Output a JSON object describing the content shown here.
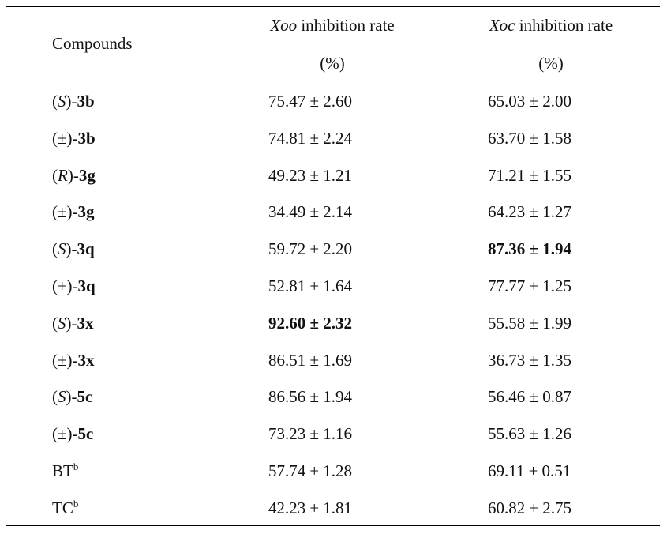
{
  "header": {
    "compounds": "Compounds",
    "xoo_species": "Xoo",
    "xoo_rest": " inhibition rate",
    "xoc_species": "Xoc",
    "xoc_rest": " inhibition rate",
    "unit": "(%)"
  },
  "rows": [
    {
      "stereo_open": "(",
      "stereo": "S",
      "stereo_close": ")-",
      "cmp": "3b",
      "sup": "",
      "xoo": "75.47 ± 2.60",
      "xoc": "65.03 ± 2.00",
      "bold_xoo": false,
      "bold_xoc": false
    },
    {
      "stereo_open": "(",
      "stereo": "±",
      "stereo_close": ")-",
      "cmp": "3b",
      "sup": "",
      "xoo": "74.81 ± 2.24",
      "xoc": "63.70 ± 1.58",
      "bold_xoo": false,
      "bold_xoc": false
    },
    {
      "stereo_open": "(",
      "stereo": "R",
      "stereo_close": ")-",
      "cmp": "3g",
      "sup": "",
      "xoo": "49.23 ± 1.21",
      "xoc": "71.21 ± 1.55",
      "bold_xoo": false,
      "bold_xoc": false
    },
    {
      "stereo_open": "(",
      "stereo": "±",
      "stereo_close": ")-",
      "cmp": "3g",
      "sup": "",
      "xoo": "34.49 ± 2.14",
      "xoc": "64.23 ± 1.27",
      "bold_xoo": false,
      "bold_xoc": false
    },
    {
      "stereo_open": "(",
      "stereo": "S",
      "stereo_close": ")-",
      "cmp": "3q",
      "sup": "",
      "xoo": "59.72 ± 2.20",
      "xoc": "87.36 ± 1.94",
      "bold_xoo": false,
      "bold_xoc": true
    },
    {
      "stereo_open": "(",
      "stereo": "±",
      "stereo_close": ")-",
      "cmp": "3q",
      "sup": "",
      "xoo": "52.81 ± 1.64",
      "xoc": "77.77 ± 1.25",
      "bold_xoo": false,
      "bold_xoc": false
    },
    {
      "stereo_open": "(",
      "stereo": "S",
      "stereo_close": ")-",
      "cmp": "3x",
      "sup": "",
      "xoo": "92.60 ± 2.32",
      "xoc": "55.58 ± 1.99",
      "bold_xoo": true,
      "bold_xoc": false
    },
    {
      "stereo_open": "(",
      "stereo": "±",
      "stereo_close": ")-",
      "cmp": "3x",
      "sup": "",
      "xoo": "86.51 ± 1.69",
      "xoc": "36.73 ± 1.35",
      "bold_xoo": false,
      "bold_xoc": false
    },
    {
      "stereo_open": "(",
      "stereo": "S",
      "stereo_close": ")-",
      "cmp": "5c",
      "sup": "",
      "xoo": "86.56 ± 1.94",
      "xoc": "56.46 ± 0.87",
      "bold_xoo": false,
      "bold_xoc": false
    },
    {
      "stereo_open": "(",
      "stereo": "±",
      "stereo_close": ")-",
      "cmp": "5c",
      "sup": "",
      "xoo": "73.23 ± 1.16",
      "xoc": "55.63 ± 1.26",
      "bold_xoo": false,
      "bold_xoc": false
    },
    {
      "stereo_open": "",
      "stereo": "",
      "stereo_close": "",
      "cmp": "BT",
      "sup": "b",
      "xoo": "57.74 ± 1.28",
      "xoc": "69.11 ± 0.51",
      "bold_xoo": false,
      "bold_xoc": false
    },
    {
      "stereo_open": "",
      "stereo": "",
      "stereo_close": "",
      "cmp": "TC",
      "sup": "b",
      "xoo": "42.23 ± 1.81",
      "xoc": "60.82 ± 2.75",
      "bold_xoo": false,
      "bold_xoc": false
    }
  ]
}
